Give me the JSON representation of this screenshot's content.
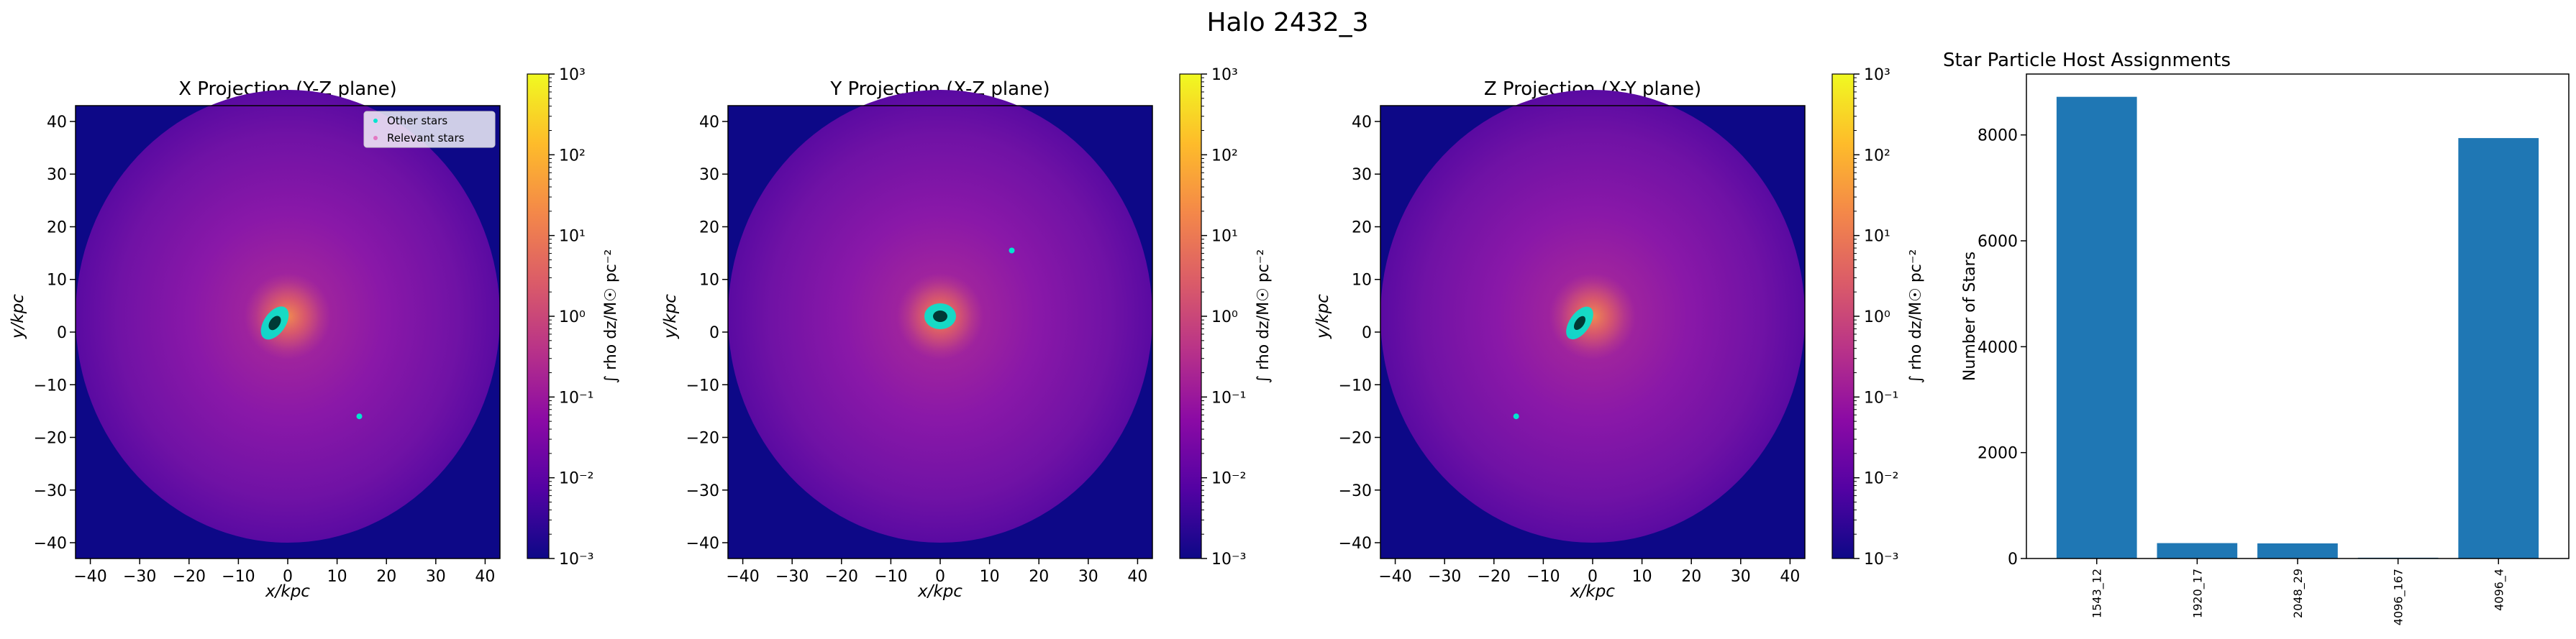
{
  "suptitle": "Halo 2432_3",
  "colors": {
    "bar": "#1f77b4",
    "star_marker": "#00e5d0",
    "background_low": "#0d0887",
    "cmap": [
      "#0d0887",
      "#5302a3",
      "#8b0aa5",
      "#b83289",
      "#db5c68",
      "#f48849",
      "#febc2a",
      "#f0f921"
    ]
  },
  "projections": [
    {
      "title": "X Projection (Y-Z plane)",
      "xlabel": "x/kpc",
      "ylabel": "y/kpc",
      "xticks": [
        "−40",
        "−30",
        "−20",
        "−10",
        "0",
        "10",
        "20",
        "30",
        "40"
      ],
      "yticks": [
        "−40",
        "−30",
        "−20",
        "−10",
        "0",
        "10",
        "20",
        "30",
        "40"
      ],
      "xlim": [
        -43,
        43
      ],
      "ylim": [
        -43,
        43
      ],
      "halo_radius": 43,
      "core_angle_deg": -55,
      "satellite": [
        14.5,
        -16
      ],
      "legend": [
        "Other stars",
        "Relevant stars"
      ],
      "colorbar": {
        "label": "∫ rho dz/M☉ pc⁻²",
        "ticks": [
          "10³",
          "10²",
          "10¹",
          "10⁰",
          "10⁻¹",
          "10⁻²",
          "10⁻³"
        ],
        "log_range": [
          -3,
          3
        ]
      }
    },
    {
      "title": "Y Projection (X-Z plane)",
      "xlabel": "x/kpc",
      "ylabel": "y/kpc",
      "xticks": [
        "−40",
        "−30",
        "−20",
        "−10",
        "0",
        "10",
        "20",
        "30",
        "40"
      ],
      "yticks": [
        "−40",
        "−30",
        "−20",
        "−10",
        "0",
        "10",
        "20",
        "30",
        "40"
      ],
      "xlim": [
        -43,
        43
      ],
      "ylim": [
        -43,
        43
      ],
      "halo_radius": 43,
      "core_angle_deg": 0,
      "satellite": [
        14.5,
        15.5
      ],
      "legend": [],
      "colorbar": {
        "label": "∫ rho dz/M☉ pc⁻²",
        "ticks": [
          "10³",
          "10²",
          "10¹",
          "10⁰",
          "10⁻¹",
          "10⁻²",
          "10⁻³"
        ],
        "log_range": [
          -3,
          3
        ]
      }
    },
    {
      "title": "Z Projection (X-Y plane)",
      "xlabel": "x/kpc",
      "ylabel": "y/kpc",
      "xticks": [
        "−40",
        "−30",
        "−20",
        "−10",
        "0",
        "10",
        "20",
        "30",
        "40"
      ],
      "yticks": [
        "−40",
        "−30",
        "−20",
        "−10",
        "0",
        "10",
        "20",
        "30",
        "40"
      ],
      "xlim": [
        -43,
        43
      ],
      "ylim": [
        -43,
        43
      ],
      "halo_radius": 43,
      "core_angle_deg": -55,
      "satellite": [
        -15.5,
        -16
      ],
      "legend": [],
      "colorbar": {
        "label": "∫ rho dz/M☉ pc⁻²",
        "ticks": [
          "10³",
          "10²",
          "10¹",
          "10⁰",
          "10⁻¹",
          "10⁻²",
          "10⁻³"
        ],
        "log_range": [
          -3,
          3
        ]
      }
    }
  ],
  "chart_data": {
    "type": "bar",
    "title": "Star Particle Host Assignments",
    "xlabel": "",
    "ylabel": "Number of Stars",
    "categories": [
      "1543_12",
      "1920_17",
      "2048_29",
      "4096_167",
      "4096_4"
    ],
    "values": [
      8720,
      290,
      285,
      15,
      7940
    ],
    "ylim": [
      0,
      9150
    ],
    "yticks": [
      0,
      2000,
      4000,
      6000,
      8000
    ],
    "grid": false,
    "legend": "none"
  }
}
